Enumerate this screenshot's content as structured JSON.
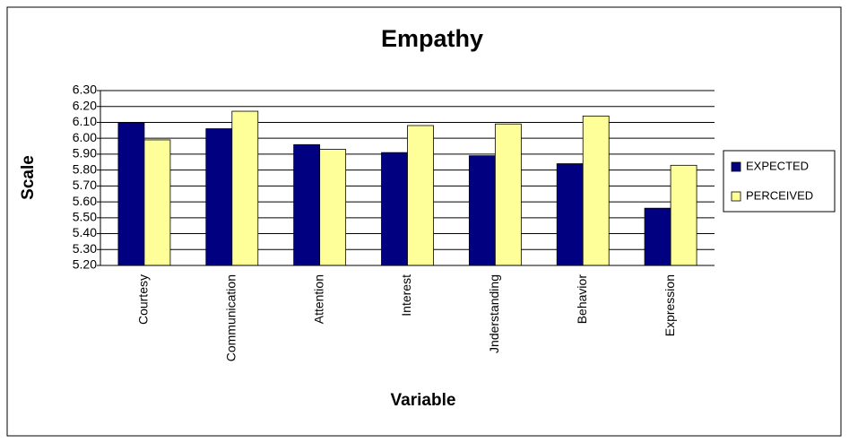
{
  "chart_data": {
    "type": "bar",
    "title": "Empathy",
    "x_label": "Variable",
    "y_label": "Scale",
    "categories": [
      "Courtesy",
      "Communication",
      "Attention",
      "Interest",
      "Jnderstanding",
      "Behavior",
      "Expression"
    ],
    "series": [
      {
        "name": "EXPECTED",
        "color": "#000080",
        "values": [
          6.1,
          6.06,
          5.96,
          5.91,
          5.89,
          5.84,
          5.56
        ]
      },
      {
        "name": "PERCEIVED",
        "color": "#ffff99",
        "values": [
          5.99,
          6.17,
          5.93,
          6.08,
          6.09,
          6.14,
          5.83
        ]
      }
    ],
    "ylim": [
      5.2,
      6.3
    ],
    "yticks": [
      {
        "value": 5.2,
        "label": "5.20"
      },
      {
        "value": 5.3,
        "label": "5.30"
      },
      {
        "value": 5.4,
        "label": "5.40"
      },
      {
        "value": 5.5,
        "label": "5.50"
      },
      {
        "value": 5.6,
        "label": "5.60"
      },
      {
        "value": 5.7,
        "label": "5.70"
      },
      {
        "value": 5.8,
        "label": "5.80"
      },
      {
        "value": 5.9,
        "label": "5.90"
      },
      {
        "value": 6.0,
        "label": "6.00"
      },
      {
        "value": 6.1,
        "label": "6.10"
      },
      {
        "value": 6.2,
        "label": "6.20"
      },
      {
        "value": 6.3,
        "label": "6.30"
      }
    ],
    "grid": true,
    "legend": "right"
  }
}
